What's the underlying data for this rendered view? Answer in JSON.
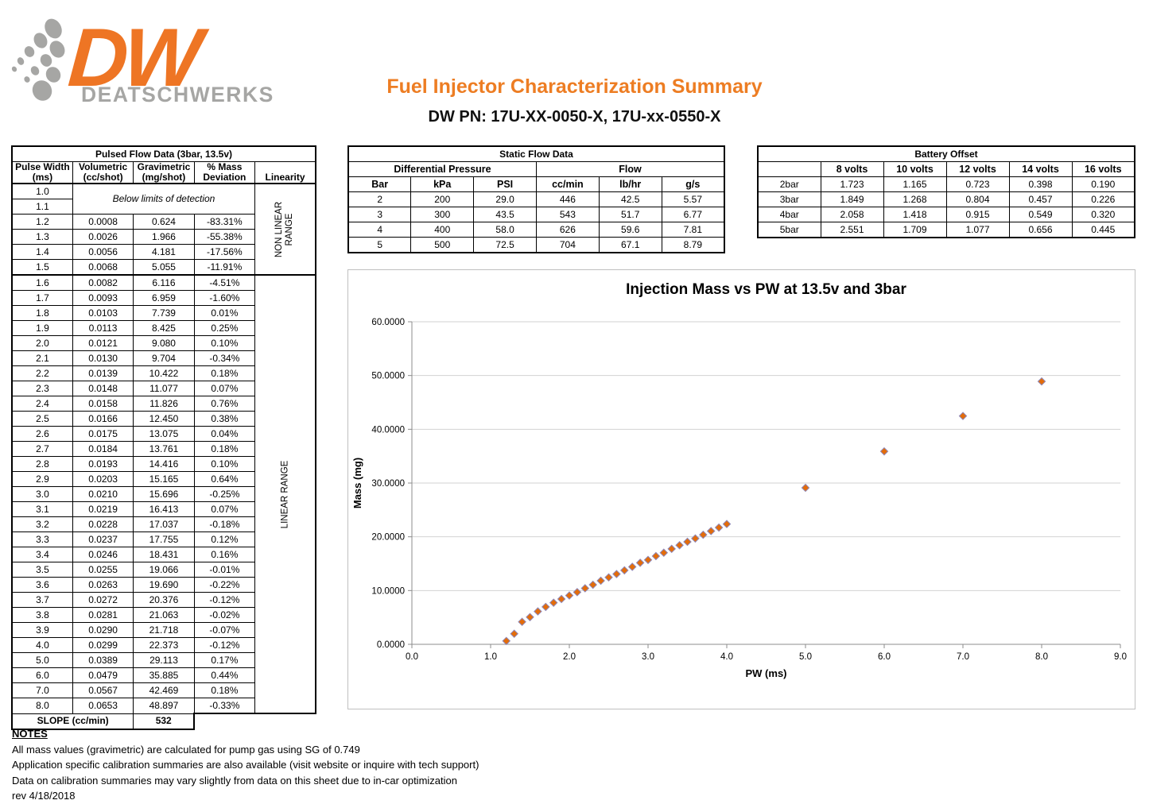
{
  "header": {
    "logo": {
      "brand": "DW",
      "brand_sub": "DEATSCHWERKS"
    },
    "title": "Fuel Injector Characterization Summary",
    "subtitle": "DW PN: 17U-XX-0050-X, 17U-xx-0550-X",
    "colors": {
      "orange": "#ED7D23",
      "logo_orange": "#EE7524",
      "logo_gray": "#A6A6A4"
    }
  },
  "pulsed_table": {
    "title": "Pulsed Flow Data (3bar, 13.5v)",
    "col_headers": [
      [
        "Pulse Width",
        "(ms)"
      ],
      [
        "Volumetric",
        "(cc/shot)"
      ],
      [
        "Gravimetric",
        "(mg/shot)"
      ],
      [
        "% Mass",
        "Deviation"
      ],
      [
        "Linearity"
      ]
    ],
    "below_detection": {
      "pw": [
        "1.0",
        "1.1"
      ],
      "label": "Below limits of detection"
    },
    "non_linear_label_lines": [
      "NON LINEAR",
      "RANGE"
    ],
    "linear_label_lines": [
      "LINEAR RANGE"
    ],
    "non_linear_rows": [
      [
        "1.2",
        "0.0008",
        "0.624",
        "-83.31%"
      ],
      [
        "1.3",
        "0.0026",
        "1.966",
        "-55.38%"
      ],
      [
        "1.4",
        "0.0056",
        "4.181",
        "-17.56%"
      ],
      [
        "1.5",
        "0.0068",
        "5.055",
        "-11.91%"
      ]
    ],
    "linear_rows": [
      [
        "1.6",
        "0.0082",
        "6.116",
        "-4.51%"
      ],
      [
        "1.7",
        "0.0093",
        "6.959",
        "-1.60%"
      ],
      [
        "1.8",
        "0.0103",
        "7.739",
        "0.01%"
      ],
      [
        "1.9",
        "0.0113",
        "8.425",
        "0.25%"
      ],
      [
        "2.0",
        "0.0121",
        "9.080",
        "0.10%"
      ],
      [
        "2.1",
        "0.0130",
        "9.704",
        "-0.34%"
      ],
      [
        "2.2",
        "0.0139",
        "10.422",
        "0.18%"
      ],
      [
        "2.3",
        "0.0148",
        "11.077",
        "0.07%"
      ],
      [
        "2.4",
        "0.0158",
        "11.826",
        "0.76%"
      ],
      [
        "2.5",
        "0.0166",
        "12.450",
        "0.38%"
      ],
      [
        "2.6",
        "0.0175",
        "13.075",
        "0.04%"
      ],
      [
        "2.7",
        "0.0184",
        "13.761",
        "0.18%"
      ],
      [
        "2.8",
        "0.0193",
        "14.416",
        "0.10%"
      ],
      [
        "2.9",
        "0.0203",
        "15.165",
        "0.64%"
      ],
      [
        "3.0",
        "0.0210",
        "15.696",
        "-0.25%"
      ],
      [
        "3.1",
        "0.0219",
        "16.413",
        "0.07%"
      ],
      [
        "3.2",
        "0.0228",
        "17.037",
        "-0.18%"
      ],
      [
        "3.3",
        "0.0237",
        "17.755",
        "0.12%"
      ],
      [
        "3.4",
        "0.0246",
        "18.431",
        "0.16%"
      ],
      [
        "3.5",
        "0.0255",
        "19.066",
        "-0.01%"
      ],
      [
        "3.6",
        "0.0263",
        "19.690",
        "-0.22%"
      ],
      [
        "3.7",
        "0.0272",
        "20.376",
        "-0.12%"
      ],
      [
        "3.8",
        "0.0281",
        "21.063",
        "-0.02%"
      ],
      [
        "3.9",
        "0.0290",
        "21.718",
        "-0.07%"
      ],
      [
        "4.0",
        "0.0299",
        "22.373",
        "-0.12%"
      ],
      [
        "5.0",
        "0.0389",
        "29.113",
        "0.17%"
      ],
      [
        "6.0",
        "0.0479",
        "35.885",
        "0.44%"
      ],
      [
        "7.0",
        "0.0567",
        "42.469",
        "0.18%"
      ],
      [
        "8.0",
        "0.0653",
        "48.897",
        "-0.33%"
      ]
    ],
    "slope": {
      "label": "SLOPE (cc/min)",
      "value": "532"
    }
  },
  "static_table": {
    "title": "Static Flow Data",
    "group_headers": [
      "Differential Pressure",
      "Flow"
    ],
    "col_headers": [
      "Bar",
      "kPa",
      "PSI",
      "cc/min",
      "lb/hr",
      "g/s"
    ],
    "rows": [
      [
        "2",
        "200",
        "29.0",
        "446",
        "42.5",
        "5.57"
      ],
      [
        "3",
        "300",
        "43.5",
        "543",
        "51.7",
        "6.77"
      ],
      [
        "4",
        "400",
        "58.0",
        "626",
        "59.6",
        "7.81"
      ],
      [
        "5",
        "500",
        "72.5",
        "704",
        "67.1",
        "8.79"
      ]
    ]
  },
  "battery_table": {
    "title": "Battery Offset",
    "col_headers": [
      "",
      "8 volts",
      "10 volts",
      "12 volts",
      "14 volts",
      "16 volts"
    ],
    "rows": [
      [
        "2bar",
        "1.723",
        "1.165",
        "0.723",
        "0.398",
        "0.190"
      ],
      [
        "3bar",
        "1.849",
        "1.268",
        "0.804",
        "0.457",
        "0.226"
      ],
      [
        "4bar",
        "2.058",
        "1.418",
        "0.915",
        "0.549",
        "0.320"
      ],
      [
        "5bar",
        "2.551",
        "1.709",
        "1.077",
        "0.656",
        "0.445"
      ]
    ]
  },
  "chart_data": {
    "type": "scatter",
    "title": "Injection Mass vs PW at 13.5v and 3bar",
    "xlabel": "PW (ms)",
    "ylabel": "Mass (mg)",
    "xlim": [
      0,
      9
    ],
    "ylim": [
      0,
      60
    ],
    "xtick_step": 1,
    "ytick_step": 10,
    "grid": "horizontal-only",
    "legend": "none",
    "marker": {
      "shape": "diamond",
      "fill": "#E36C0A",
      "stroke": "#9088B8"
    },
    "points": [
      [
        1.2,
        0.624
      ],
      [
        1.3,
        1.966
      ],
      [
        1.4,
        4.181
      ],
      [
        1.5,
        5.055
      ],
      [
        1.6,
        6.116
      ],
      [
        1.7,
        6.959
      ],
      [
        1.8,
        7.739
      ],
      [
        1.9,
        8.425
      ],
      [
        2.0,
        9.08
      ],
      [
        2.1,
        9.704
      ],
      [
        2.2,
        10.422
      ],
      [
        2.3,
        11.077
      ],
      [
        2.4,
        11.826
      ],
      [
        2.5,
        12.45
      ],
      [
        2.6,
        13.075
      ],
      [
        2.7,
        13.761
      ],
      [
        2.8,
        14.416
      ],
      [
        2.9,
        15.165
      ],
      [
        3.0,
        15.696
      ],
      [
        3.1,
        16.413
      ],
      [
        3.2,
        17.037
      ],
      [
        3.3,
        17.755
      ],
      [
        3.4,
        18.431
      ],
      [
        3.5,
        19.066
      ],
      [
        3.6,
        19.69
      ],
      [
        3.7,
        20.376
      ],
      [
        3.8,
        21.063
      ],
      [
        3.9,
        21.718
      ],
      [
        4.0,
        22.373
      ],
      [
        5.0,
        29.113
      ],
      [
        6.0,
        35.885
      ],
      [
        7.0,
        42.469
      ],
      [
        8.0,
        48.897
      ]
    ]
  },
  "notes": {
    "heading": "NOTES",
    "lines": [
      "All mass values (gravimetric) are calculated for pump gas using SG of 0.749",
      "Application specific calibration summaries are also available (visit website or inquire with tech support)",
      "Data on calibration summaries may vary slightly from data on this sheet due to in-car optimization",
      "rev 4/18/2018"
    ]
  }
}
